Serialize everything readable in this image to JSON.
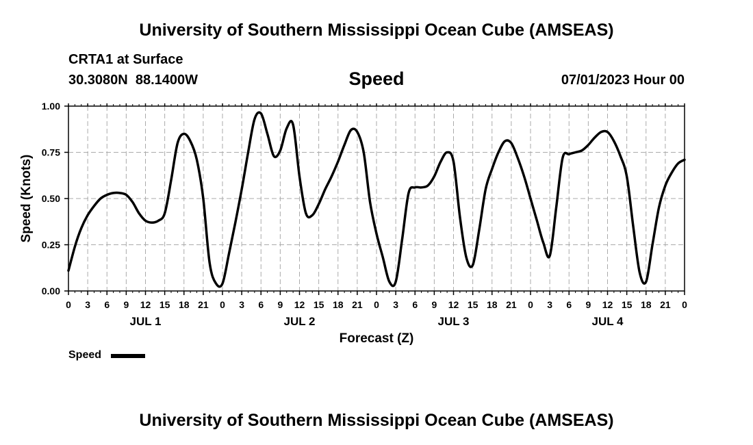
{
  "header": {
    "title": "University of Southern Mississippi Ocean Cube (AMSEAS)",
    "station": "CRTA1 at Surface",
    "coords": "30.3080N  88.1400W",
    "variable": "Speed",
    "datetime": "07/01/2023 Hour 00"
  },
  "footer": {
    "title": "University of Southern Mississippi Ocean Cube (AMSEAS)"
  },
  "legend": {
    "label": "Speed"
  },
  "chart_data": {
    "type": "line",
    "title": "Speed",
    "xlabel": "Forecast (Z)",
    "ylabel": "Speed (Knots)",
    "xlim": [
      0,
      96
    ],
    "ylim": [
      0,
      1
    ],
    "grid": true,
    "yticks": [
      {
        "value": 0,
        "label": "0.00"
      },
      {
        "value": 0.25,
        "label": "0.25"
      },
      {
        "value": 0.5,
        "label": "0.50"
      },
      {
        "value": 0.75,
        "label": "0.75"
      },
      {
        "value": 1,
        "label": "1.00"
      }
    ],
    "xticks": [
      {
        "hour": 0,
        "label": "0"
      },
      {
        "hour": 3,
        "label": "3"
      },
      {
        "hour": 6,
        "label": "6"
      },
      {
        "hour": 9,
        "label": "9"
      },
      {
        "hour": 12,
        "label": "12"
      },
      {
        "hour": 15,
        "label": "15"
      },
      {
        "hour": 18,
        "label": "18"
      },
      {
        "hour": 21,
        "label": "21"
      },
      {
        "hour": 24,
        "label": "0"
      },
      {
        "hour": 27,
        "label": "3"
      },
      {
        "hour": 30,
        "label": "6"
      },
      {
        "hour": 33,
        "label": "9"
      },
      {
        "hour": 36,
        "label": "12"
      },
      {
        "hour": 39,
        "label": "15"
      },
      {
        "hour": 42,
        "label": "18"
      },
      {
        "hour": 45,
        "label": "21"
      },
      {
        "hour": 48,
        "label": "0"
      },
      {
        "hour": 51,
        "label": "3"
      },
      {
        "hour": 54,
        "label": "6"
      },
      {
        "hour": 57,
        "label": "9"
      },
      {
        "hour": 60,
        "label": "12"
      },
      {
        "hour": 63,
        "label": "15"
      },
      {
        "hour": 66,
        "label": "18"
      },
      {
        "hour": 69,
        "label": "21"
      },
      {
        "hour": 72,
        "label": "0"
      },
      {
        "hour": 75,
        "label": "3"
      },
      {
        "hour": 78,
        "label": "6"
      },
      {
        "hour": 81,
        "label": "9"
      },
      {
        "hour": 84,
        "label": "12"
      },
      {
        "hour": 87,
        "label": "15"
      },
      {
        "hour": 90,
        "label": "18"
      },
      {
        "hour": 93,
        "label": "21"
      },
      {
        "hour": 96,
        "label": "0"
      }
    ],
    "day_labels": [
      {
        "hour": 12,
        "label": "JUL 1"
      },
      {
        "hour": 36,
        "label": "JUL 2"
      },
      {
        "hour": 60,
        "label": "JUL 3"
      },
      {
        "hour": 84,
        "label": "JUL 4"
      }
    ],
    "series": [
      {
        "name": "Speed",
        "x": [
          0,
          1,
          2,
          3,
          4,
          5,
          6,
          7,
          8,
          9,
          10,
          11,
          12,
          13,
          14,
          15,
          16,
          17,
          18,
          19,
          20,
          21,
          22,
          23,
          24,
          25,
          26,
          27,
          28,
          29,
          30,
          31,
          32,
          33,
          34,
          35,
          36,
          37,
          38,
          39,
          40,
          41,
          42,
          43,
          44,
          45,
          46,
          47,
          48,
          49,
          50,
          51,
          52,
          53,
          54,
          55,
          56,
          57,
          58,
          59,
          60,
          61,
          62,
          63,
          64,
          65,
          66,
          67,
          68,
          69,
          70,
          71,
          72,
          73,
          74,
          75,
          76,
          77,
          78,
          79,
          80,
          81,
          82,
          83,
          84,
          85,
          86,
          87,
          88,
          89,
          90,
          91,
          92,
          93,
          94,
          95,
          96
        ],
        "values": [
          0.11,
          0.24,
          0.34,
          0.41,
          0.46,
          0.5,
          0.52,
          0.53,
          0.53,
          0.52,
          0.48,
          0.42,
          0.38,
          0.37,
          0.38,
          0.42,
          0.6,
          0.8,
          0.85,
          0.81,
          0.71,
          0.5,
          0.15,
          0.04,
          0.04,
          0.2,
          0.37,
          0.55,
          0.75,
          0.93,
          0.96,
          0.85,
          0.73,
          0.76,
          0.88,
          0.9,
          0.62,
          0.42,
          0.41,
          0.47,
          0.55,
          0.62,
          0.7,
          0.79,
          0.87,
          0.86,
          0.75,
          0.48,
          0.31,
          0.18,
          0.05,
          0.05,
          0.28,
          0.53,
          0.56,
          0.56,
          0.57,
          0.62,
          0.7,
          0.75,
          0.7,
          0.4,
          0.18,
          0.14,
          0.33,
          0.55,
          0.66,
          0.75,
          0.81,
          0.8,
          0.72,
          0.62,
          0.5,
          0.38,
          0.26,
          0.19,
          0.45,
          0.72,
          0.74,
          0.75,
          0.76,
          0.79,
          0.83,
          0.86,
          0.86,
          0.81,
          0.73,
          0.62,
          0.35,
          0.1,
          0.05,
          0.25,
          0.45,
          0.57,
          0.64,
          0.69,
          0.71
        ],
        "color": "#000000"
      }
    ]
  }
}
